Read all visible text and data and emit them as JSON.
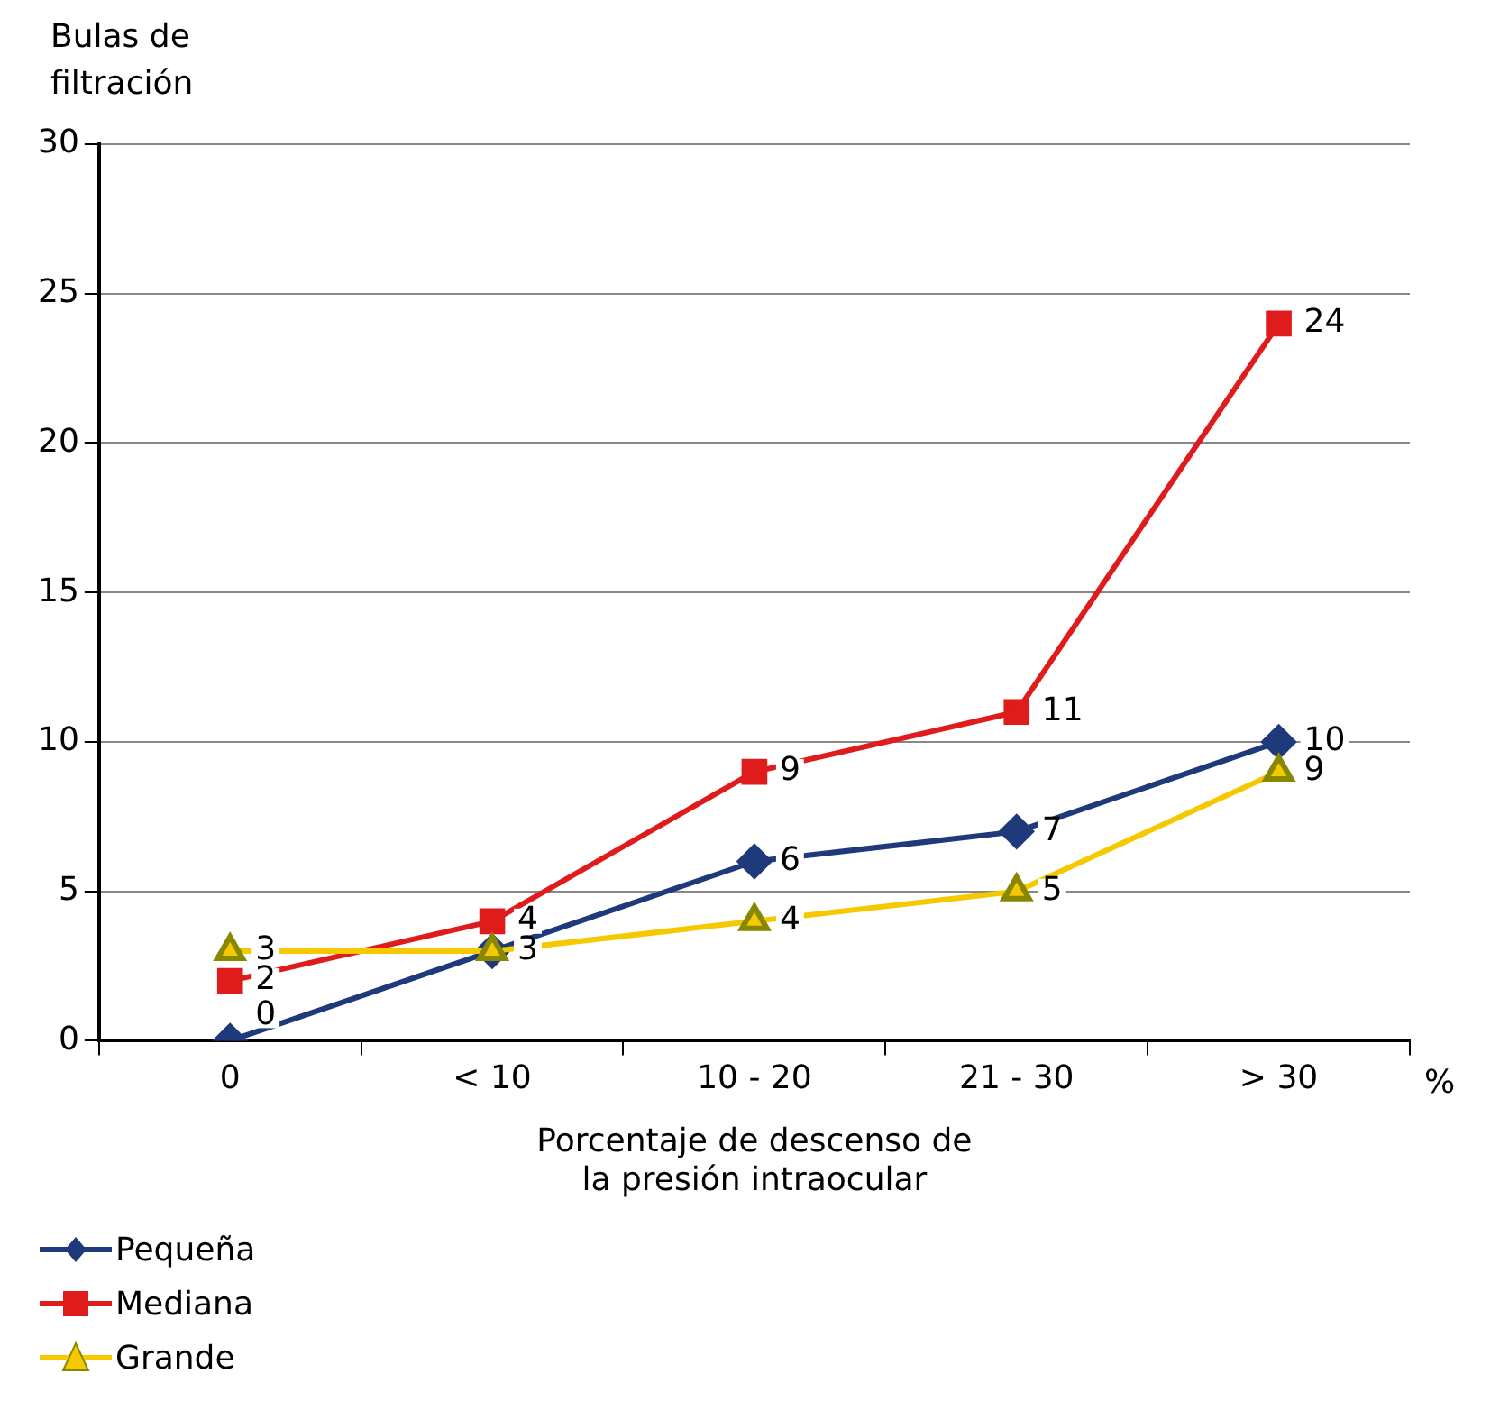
{
  "chart_data": {
    "type": "line",
    "ylabel": "Bulas de\nfiltración",
    "xlabel": "Porcentaje de descenso de\nla presión intraocular",
    "annotations": [
      "%"
    ],
    "categories": [
      "0",
      "< 10",
      "10 - 20",
      "21 - 30",
      "> 30"
    ],
    "series": [
      {
        "name": "Pequeña",
        "color": "#1f3a7a",
        "marker": "diamond",
        "values": [
          0,
          3,
          6,
          7,
          10
        ],
        "value_labels": [
          "0",
          "3",
          "6",
          "7",
          "10"
        ]
      },
      {
        "name": "Mediana",
        "color": "#e01b1b",
        "marker": "square",
        "values": [
          2,
          4,
          9,
          11,
          24
        ],
        "value_labels": [
          "2",
          "4",
          "9",
          "11",
          "24"
        ]
      },
      {
        "name": "Grande",
        "color": "#f5c800",
        "marker": "triangle",
        "values": [
          3,
          3,
          4,
          5,
          9
        ],
        "value_labels": [
          "3",
          null,
          "4",
          "5",
          "9"
        ]
      }
    ],
    "ylim": [
      0,
      30
    ],
    "yticks": [
      0,
      5,
      10,
      15,
      20,
      25,
      30
    ],
    "grid": "y",
    "legend": "bottom"
  }
}
